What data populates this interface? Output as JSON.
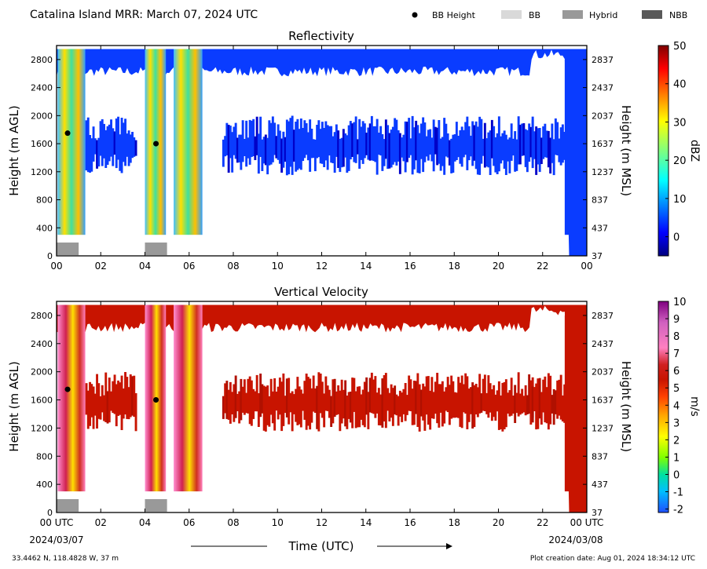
{
  "header": {
    "title": "Catalina Island MRR:  March 07, 2024 UTC",
    "legend": [
      {
        "label": "BB Height",
        "marker": "dot",
        "color": "#000000"
      },
      {
        "label": "BB",
        "marker": "box",
        "color": "#d9d9d9"
      },
      {
        "label": "Hybrid",
        "marker": "box",
        "color": "#999999"
      },
      {
        "label": "NBB",
        "marker": "box",
        "color": "#595959"
      }
    ]
  },
  "footer": {
    "xlabel": "Time (UTC)",
    "start_date": "2024/03/07",
    "end_date": "2024/03/08",
    "location": "33.4462 N, 118.4828 W, 37 m",
    "creation": "Plot creation date: Aug 01, 2024 18:34:12 UTC"
  },
  "chart_data": [
    {
      "type": "heatmap",
      "title": "Reflectivity",
      "x_ticks": [
        "00",
        "02",
        "04",
        "06",
        "08",
        "10",
        "12",
        "14",
        "16",
        "18",
        "20",
        "22",
        "00"
      ],
      "xlim": [
        0,
        24
      ],
      "ylabel_left": "Height (m AGL)",
      "ylabel_right": "Height (m MSL)",
      "ylim": [
        0,
        3000
      ],
      "y_ticks_left": [
        0,
        400,
        800,
        1200,
        1600,
        2000,
        2400,
        2800
      ],
      "y_ticks_right": [
        "37",
        "437",
        "837",
        "1237",
        "1637",
        "2037",
        "2437",
        "2837"
      ],
      "colorbar": {
        "label": "dBZ",
        "range": [
          -5,
          50
        ],
        "ticks": [
          0,
          10,
          20,
          30,
          40,
          50
        ],
        "scheme": "jet"
      },
      "bb_height": [
        {
          "x": 0.5,
          "y": 1750
        },
        {
          "x": 4.5,
          "y": 1600
        }
      ],
      "melting_layer_type": [
        {
          "x0": 0.0,
          "x1": 1.0,
          "type": "Hybrid"
        },
        {
          "x0": 4.0,
          "x1": 5.0,
          "type": "Hybrid"
        }
      ],
      "grid": false,
      "legend_position": "top-right"
    },
    {
      "type": "heatmap",
      "title": "Vertical Velocity",
      "x_ticks": [
        "00 UTC",
        "02",
        "04",
        "06",
        "08",
        "10",
        "12",
        "14",
        "16",
        "18",
        "20",
        "22",
        "00 UTC"
      ],
      "xlim": [
        0,
        24
      ],
      "ylabel_left": "Height (m AGL)",
      "ylabel_right": "Height (m MSL)",
      "ylim": [
        0,
        3000
      ],
      "y_ticks_left": [
        0,
        400,
        800,
        1200,
        1600,
        2000,
        2400,
        2800
      ],
      "y_ticks_right": [
        "37",
        "437",
        "837",
        "1237",
        "1637",
        "2037",
        "2437",
        "2837"
      ],
      "colorbar": {
        "label": "m/s",
        "range": [
          -2.2,
          10
        ],
        "ticks": [
          -2,
          -1,
          0,
          1,
          2,
          3,
          4,
          5,
          6,
          7,
          8,
          9,
          10
        ],
        "scheme": "velocity"
      },
      "bb_height": [
        {
          "x": 0.5,
          "y": 1750
        },
        {
          "x": 4.5,
          "y": 1600
        }
      ],
      "melting_layer_type": [
        {
          "x0": 0.0,
          "x1": 1.0,
          "type": "Hybrid"
        },
        {
          "x0": 4.0,
          "x1": 5.0,
          "type": "Hybrid"
        }
      ],
      "grid": false
    }
  ]
}
